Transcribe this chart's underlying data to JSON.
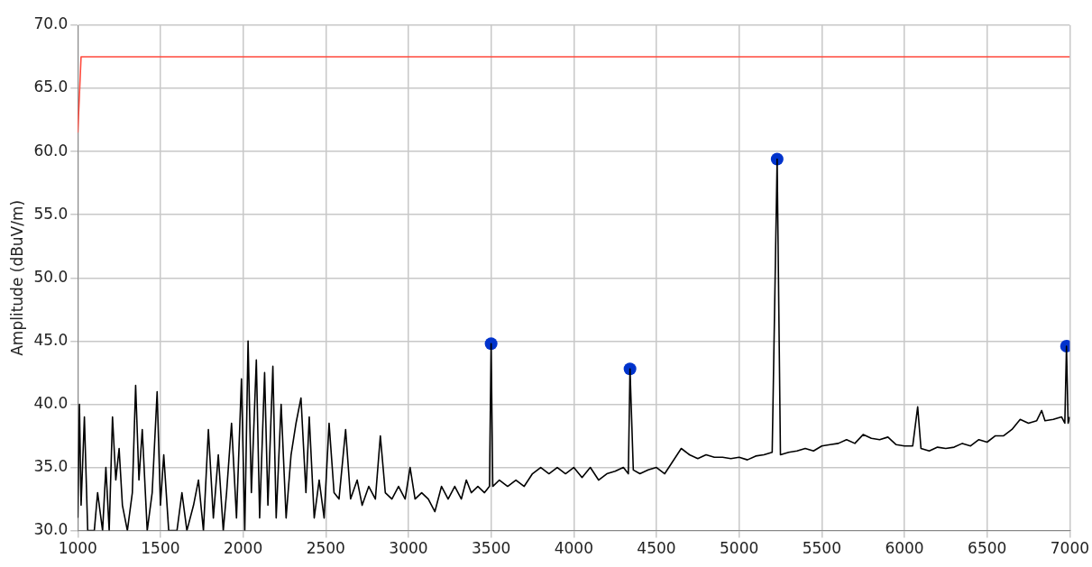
{
  "chart_data": {
    "type": "line",
    "ylabel": "Amplitude (dBuV/m)",
    "xlim": [
      1000,
      7000
    ],
    "xticks": [
      1000,
      1500,
      2000,
      2500,
      3000,
      3500,
      4000,
      4500,
      5000,
      5500,
      6000,
      6500,
      7000
    ],
    "ylim": [
      30,
      70
    ],
    "yticks": [
      {
        "value": 30,
        "label": "30.0"
      },
      {
        "value": 35,
        "label": "35.0"
      },
      {
        "value": 40,
        "label": "40.0"
      },
      {
        "value": 45,
        "label": "45.0"
      },
      {
        "value": 50,
        "label": "50.0"
      },
      {
        "value": 55,
        "label": "55.0"
      },
      {
        "value": 60,
        "label": "60.0"
      },
      {
        "value": 65,
        "label": "65.0"
      },
      {
        "value": 70,
        "label": "70.0"
      }
    ],
    "grid": true,
    "legend": false,
    "line_style": "solid",
    "series": [
      {
        "color": "#ff4a3d",
        "marker": "none",
        "x": [
          1000,
          1010,
          1020,
          7000
        ],
        "values": [
          61.5,
          64.5,
          67.5,
          67.5
        ]
      },
      {
        "color": "#000000",
        "marker": "none",
        "x": [
          1000,
          1010,
          1020,
          1040,
          1060,
          1100,
          1120,
          1150,
          1170,
          1190,
          1210,
          1230,
          1250,
          1270,
          1300,
          1330,
          1350,
          1370,
          1390,
          1420,
          1450,
          1480,
          1500,
          1520,
          1550,
          1600,
          1630,
          1660,
          1700,
          1730,
          1760,
          1790,
          1820,
          1850,
          1880,
          1900,
          1930,
          1960,
          1990,
          2010,
          2030,
          2050,
          2080,
          2100,
          2130,
          2150,
          2180,
          2200,
          2230,
          2260,
          2290,
          2320,
          2350,
          2380,
          2400,
          2430,
          2460,
          2490,
          2520,
          2550,
          2580,
          2620,
          2650,
          2690,
          2720,
          2760,
          2800,
          2830,
          2860,
          2900,
          2940,
          2980,
          3010,
          3040,
          3080,
          3120,
          3160,
          3200,
          3240,
          3280,
          3320,
          3350,
          3380,
          3420,
          3460,
          3490,
          3500,
          3510,
          3550,
          3600,
          3650,
          3700,
          3750,
          3800,
          3850,
          3900,
          3950,
          4000,
          4050,
          4100,
          4150,
          4200,
          4250,
          4300,
          4330,
          4340,
          4360,
          4400,
          4450,
          4500,
          4550,
          4600,
          4650,
          4700,
          4750,
          4800,
          4850,
          4900,
          4950,
          5000,
          5050,
          5100,
          5150,
          5200,
          5230,
          5250,
          5300,
          5350,
          5400,
          5450,
          5500,
          5550,
          5600,
          5650,
          5700,
          5750,
          5800,
          5850,
          5900,
          5950,
          6000,
          6050,
          6080,
          6100,
          6150,
          6200,
          6250,
          6300,
          6350,
          6400,
          6450,
          6500,
          6550,
          6600,
          6650,
          6700,
          6750,
          6800,
          6830,
          6850,
          6900,
          6950,
          6970,
          6980,
          6990,
          7000
        ],
        "values": [
          31,
          40,
          32,
          39,
          30,
          30,
          33,
          30,
          35,
          30,
          39,
          34,
          36.5,
          32,
          30,
          33,
          41.5,
          34,
          38,
          30,
          33,
          41,
          32,
          36,
          30,
          30,
          33,
          30,
          32,
          34,
          30,
          38,
          31,
          36,
          30,
          33,
          38.5,
          31,
          42,
          30,
          45,
          33,
          43.5,
          31,
          42.5,
          32,
          43,
          31,
          40,
          31,
          36,
          38.5,
          40.5,
          33,
          39,
          31,
          34,
          31,
          38.5,
          33,
          32.5,
          38,
          32.5,
          34,
          32,
          33.5,
          32.5,
          37.5,
          33,
          32.5,
          33.5,
          32.5,
          35,
          32.5,
          33,
          32.5,
          31.5,
          33.5,
          32.5,
          33.5,
          32.5,
          34,
          33,
          33.5,
          33,
          33.5,
          44.8,
          33.5,
          34,
          33.5,
          34,
          33.5,
          34.5,
          35,
          34.5,
          35,
          34.5,
          35,
          34.2,
          35,
          34,
          34.5,
          34.7,
          35,
          34.5,
          42.8,
          34.8,
          34.5,
          34.8,
          35,
          34.5,
          35.5,
          36.5,
          36,
          35.7,
          36,
          35.8,
          35.8,
          35.7,
          35.8,
          35.6,
          35.9,
          36,
          36.2,
          59.4,
          36,
          36.2,
          36.3,
          36.5,
          36.3,
          36.7,
          36.8,
          36.9,
          37.2,
          36.9,
          37.6,
          37.3,
          37.2,
          37.4,
          36.8,
          36.7,
          36.7,
          39.8,
          36.5,
          36.3,
          36.6,
          36.5,
          36.6,
          36.9,
          36.7,
          37.2,
          37,
          37.5,
          37.5,
          38,
          38.8,
          38.5,
          38.7,
          39.5,
          38.7,
          38.8,
          39,
          38.5,
          44.6,
          38.5,
          39
        ]
      },
      {
        "type": "scatter",
        "color": "#0033cc",
        "marker": "circle",
        "x": [
          3500,
          4340,
          5230,
          6980
        ],
        "values": [
          44.8,
          42.8,
          59.4,
          44.6
        ]
      }
    ]
  }
}
